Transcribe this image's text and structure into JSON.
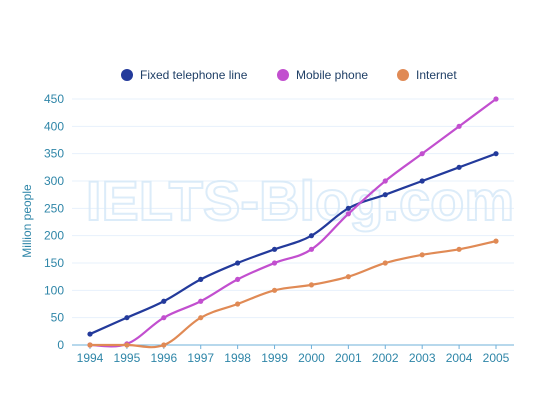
{
  "watermark": "IELTS-Blog.com",
  "chart_data": {
    "type": "line",
    "title": "",
    "xlabel": "",
    "ylabel": "Million people",
    "x": [
      1994,
      1995,
      1996,
      1997,
      1998,
      1999,
      2000,
      2001,
      2002,
      2003,
      2004,
      2005
    ],
    "ylim": [
      0,
      450
    ],
    "yticks": [
      0,
      50,
      100,
      150,
      200,
      250,
      300,
      350,
      400,
      450
    ],
    "grid": true,
    "legend_position": "top",
    "series": [
      {
        "name": "Fixed telephone line",
        "color": "#233a9b",
        "values": [
          20,
          50,
          80,
          120,
          150,
          175,
          200,
          250,
          275,
          300,
          325,
          350
        ]
      },
      {
        "name": "Mobile phone",
        "color": "#c24fcf",
        "values": [
          0,
          2,
          50,
          80,
          120,
          150,
          175,
          240,
          300,
          350,
          400,
          450
        ]
      },
      {
        "name": "Internet",
        "color": "#e08a55",
        "values": [
          0,
          0,
          0,
          50,
          75,
          100,
          110,
          125,
          150,
          165,
          175,
          190
        ]
      }
    ]
  }
}
